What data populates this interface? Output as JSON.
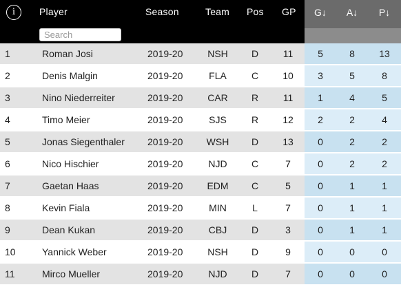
{
  "header": {
    "info_icon": "info-icon",
    "player_label": "Player",
    "season_label": "Season",
    "team_label": "Team",
    "pos_label": "Pos",
    "gp_label": "GP",
    "g_label": "G↓",
    "a_label": "A↓",
    "p_label": "P↓",
    "search_placeholder": "Search"
  },
  "rows": [
    {
      "rank": "1",
      "player": "Roman Josi",
      "season": "2019-20",
      "team": "NSH",
      "pos": "D",
      "gp": "11",
      "g": "5",
      "a": "8",
      "p": "13"
    },
    {
      "rank": "2",
      "player": "Denis Malgin",
      "season": "2019-20",
      "team": "FLA",
      "pos": "C",
      "gp": "10",
      "g": "3",
      "a": "5",
      "p": "8"
    },
    {
      "rank": "3",
      "player": "Nino Niederreiter",
      "season": "2019-20",
      "team": "CAR",
      "pos": "R",
      "gp": "11",
      "g": "1",
      "a": "4",
      "p": "5"
    },
    {
      "rank": "4",
      "player": "Timo Meier",
      "season": "2019-20",
      "team": "SJS",
      "pos": "R",
      "gp": "12",
      "g": "2",
      "a": "2",
      "p": "4"
    },
    {
      "rank": "5",
      "player": "Jonas Siegenthaler",
      "season": "2019-20",
      "team": "WSH",
      "pos": "D",
      "gp": "13",
      "g": "0",
      "a": "2",
      "p": "2"
    },
    {
      "rank": "6",
      "player": "Nico Hischier",
      "season": "2019-20",
      "team": "NJD",
      "pos": "C",
      "gp": "7",
      "g": "0",
      "a": "2",
      "p": "2"
    },
    {
      "rank": "7",
      "player": "Gaetan Haas",
      "season": "2019-20",
      "team": "EDM",
      "pos": "C",
      "gp": "5",
      "g": "0",
      "a": "1",
      "p": "1"
    },
    {
      "rank": "8",
      "player": "Kevin Fiala",
      "season": "2019-20",
      "team": "MIN",
      "pos": "L",
      "gp": "7",
      "g": "0",
      "a": "1",
      "p": "1"
    },
    {
      "rank": "9",
      "player": "Dean Kukan",
      "season": "2019-20",
      "team": "CBJ",
      "pos": "D",
      "gp": "3",
      "g": "0",
      "a": "1",
      "p": "1"
    },
    {
      "rank": "10",
      "player": "Yannick Weber",
      "season": "2019-20",
      "team": "NSH",
      "pos": "D",
      "gp": "9",
      "g": "0",
      "a": "0",
      "p": "0"
    },
    {
      "rank": "11",
      "player": "Mirco Mueller",
      "season": "2019-20",
      "team": "NJD",
      "pos": "D",
      "gp": "7",
      "g": "0",
      "a": "0",
      "p": "0"
    }
  ],
  "colors": {
    "header_bg": "#000000",
    "sorted_header_bg": "#6b6b6b",
    "row_odd_bg": "#e3e3e3",
    "stat_odd_bg": "#c8e1f0",
    "stat_even_bg": "#dcedf8"
  }
}
